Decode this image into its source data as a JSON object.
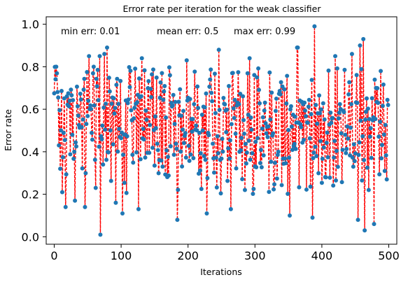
{
  "chart_data": {
    "type": "line",
    "title": "Error rate per iteration for the weak classifier",
    "xlabel": "Iterations",
    "ylabel": "Error rate",
    "xlim": [
      -12,
      512
    ],
    "ylim": [
      -0.035,
      1.035
    ],
    "xticks": [
      0,
      100,
      200,
      300,
      400,
      500
    ],
    "yticks": [
      0.0,
      0.2,
      0.4,
      0.6,
      0.8,
      1.0
    ],
    "xtick_labels": [
      "0",
      "100",
      "200",
      "300",
      "400",
      "500"
    ],
    "ytick_labels": [
      "0.0",
      "0.2",
      "0.4",
      "0.6",
      "0.8",
      "1.0"
    ],
    "grid": false,
    "line_color": "#ff0000",
    "line_style": "dashed",
    "marker_color": "#1f77b4",
    "annotations": {
      "min": "min err: 0.01",
      "mean": "mean err: 0.5",
      "max": "max err: 0.99"
    },
    "series": [
      {
        "n_points": 500,
        "y_min": 0.01,
        "y_mean": 0.5,
        "y_max": 0.99,
        "y_range": [
          0.0,
          1.0
        ],
        "notable_points": [
          {
            "x": 3,
            "y": 0.8
          },
          {
            "x": 9,
            "y": 0.32
          },
          {
            "x": 12,
            "y": 0.21
          },
          {
            "x": 17,
            "y": 0.14
          },
          {
            "x": 31,
            "y": 0.17
          },
          {
            "x": 46,
            "y": 0.14
          },
          {
            "x": 52,
            "y": 0.85
          },
          {
            "x": 62,
            "y": 0.23
          },
          {
            "x": 68,
            "y": 0.85
          },
          {
            "x": 69,
            "y": 0.01
          },
          {
            "x": 75,
            "y": 0.86
          },
          {
            "x": 79,
            "y": 0.89
          },
          {
            "x": 92,
            "y": 0.16
          },
          {
            "x": 102,
            "y": 0.11
          },
          {
            "x": 126,
            "y": 0.13
          },
          {
            "x": 131,
            "y": 0.84
          },
          {
            "x": 184,
            "y": 0.08
          },
          {
            "x": 198,
            "y": 0.83
          },
          {
            "x": 228,
            "y": 0.11
          },
          {
            "x": 246,
            "y": 0.88
          },
          {
            "x": 264,
            "y": 0.13
          },
          {
            "x": 285,
            "y": 0.22
          },
          {
            "x": 292,
            "y": 0.84
          },
          {
            "x": 352,
            "y": 0.1
          },
          {
            "x": 363,
            "y": 0.89
          },
          {
            "x": 364,
            "y": 0.89
          },
          {
            "x": 386,
            "y": 0.09
          },
          {
            "x": 389,
            "y": 0.99
          },
          {
            "x": 420,
            "y": 0.85
          },
          {
            "x": 445,
            "y": 0.86
          },
          {
            "x": 454,
            "y": 0.08
          },
          {
            "x": 457,
            "y": 0.9
          },
          {
            "x": 462,
            "y": 0.93
          },
          {
            "x": 464,
            "y": 0.03
          },
          {
            "x": 478,
            "y": 0.06
          },
          {
            "x": 488,
            "y": 0.78
          },
          {
            "x": 494,
            "y": 0.31
          },
          {
            "x": 499,
            "y": 0.62
          }
        ]
      }
    ]
  }
}
